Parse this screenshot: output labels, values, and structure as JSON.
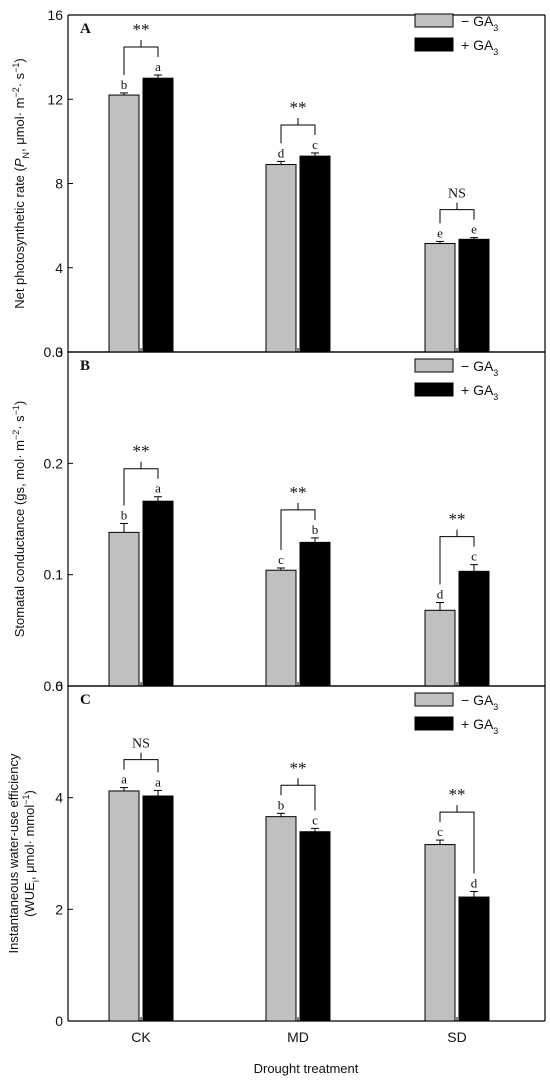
{
  "x_axis": {
    "categories": [
      "CK",
      "MD",
      "SD"
    ],
    "label": "Drought treatment"
  },
  "legend": {
    "minus_label": "− GA",
    "plus_label": "+ GA",
    "subscript": "3"
  },
  "colors": {
    "minus_bar": "#c0c0c0",
    "plus_bar": "#000000",
    "axis": "#000000"
  },
  "chart_data": [
    {
      "type": "bar",
      "panel": "A",
      "ylabel_parts": [
        "Net photosynthetic rate (",
        "P",
        "N",
        ", μmol· m",
        "−2",
        "· s",
        "−1",
        ")"
      ],
      "ylim": [
        0,
        16
      ],
      "yticks": [
        0,
        4,
        8,
        12,
        16
      ],
      "categories": [
        "CK",
        "MD",
        "SD"
      ],
      "series": [
        {
          "name": "− GA3",
          "values": [
            12.2,
            8.9,
            5.15
          ],
          "errors": [
            0.1,
            0.15,
            0.1
          ],
          "letters": [
            "b",
            "d",
            "e"
          ]
        },
        {
          "name": "+ GA3",
          "values": [
            13.0,
            9.3,
            5.35
          ],
          "errors": [
            0.15,
            0.15,
            0.08
          ],
          "letters": [
            "a",
            "c",
            "e"
          ]
        }
      ],
      "significance": [
        "**",
        "**",
        "NS"
      ]
    },
    {
      "type": "bar",
      "panel": "B",
      "ylabel_parts": [
        "Stomatal conductance (gs, mol· m",
        "−2",
        "· s",
        "−1",
        ")"
      ],
      "ylim": [
        0,
        0.3
      ],
      "yticks": [
        0.0,
        0.1,
        0.2,
        0.3
      ],
      "ytick_labels": [
        "0.0",
        "0.1",
        "0.2",
        "0.3"
      ],
      "categories": [
        "CK",
        "MD",
        "SD"
      ],
      "series": [
        {
          "name": "− GA3",
          "values": [
            0.138,
            0.104,
            0.068
          ],
          "errors": [
            0.008,
            0.002,
            0.007
          ],
          "letters": [
            "b",
            "c",
            "d"
          ]
        },
        {
          "name": "+ GA3",
          "values": [
            0.166,
            0.129,
            0.103
          ],
          "errors": [
            0.004,
            0.004,
            0.006
          ],
          "letters": [
            "a",
            "b",
            "c"
          ]
        }
      ],
      "significance": [
        "**",
        "**",
        "**"
      ]
    },
    {
      "type": "bar",
      "panel": "C",
      "ylabel_line1": "Instantaneous water-use efficiency",
      "ylabel_parts": [
        "(WUE",
        "i",
        ", μmol· mmol",
        "−1",
        ")"
      ],
      "ylim": [
        0,
        6
      ],
      "yticks": [
        0,
        2,
        4,
        6
      ],
      "categories": [
        "CK",
        "MD",
        "SD"
      ],
      "series": [
        {
          "name": "− GA3",
          "values": [
            4.12,
            3.66,
            3.16
          ],
          "errors": [
            0.06,
            0.06,
            0.08
          ],
          "letters": [
            "a",
            "b",
            "c"
          ]
        },
        {
          "name": "+ GA3",
          "values": [
            4.03,
            3.39,
            2.22
          ],
          "errors": [
            0.1,
            0.06,
            0.1
          ],
          "letters": [
            "a",
            "c",
            "d"
          ]
        }
      ],
      "significance": [
        "NS",
        "**",
        "**"
      ]
    }
  ]
}
